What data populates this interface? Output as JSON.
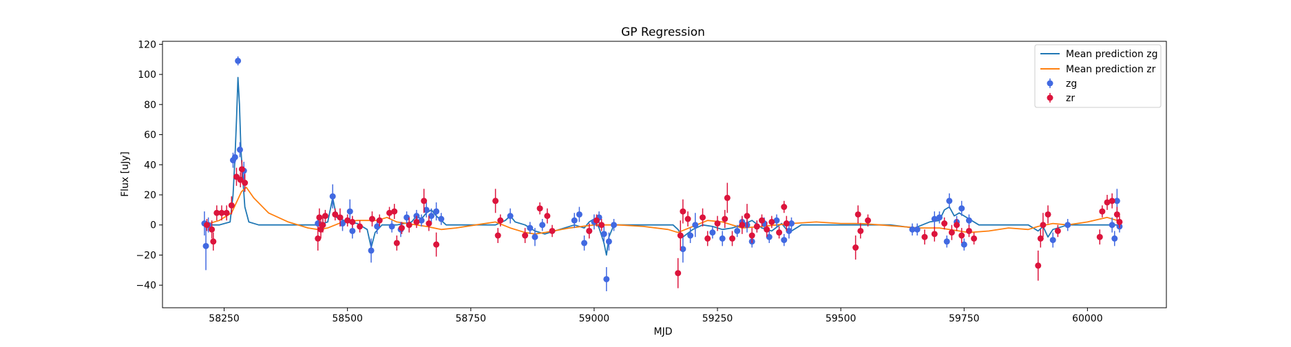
{
  "chart_data": {
    "type": "scatter",
    "title": "GP Regression",
    "xlabel": "MJD",
    "ylabel": "Flux [uJy]",
    "xlim": [
      58125,
      60160
    ],
    "ylim": [
      -55,
      122
    ],
    "xticks": [
      58250,
      58500,
      58750,
      59000,
      59250,
      59500,
      59750,
      60000
    ],
    "yticks": [
      -40,
      -20,
      0,
      20,
      40,
      60,
      80,
      100,
      120
    ],
    "grid": false,
    "legend_position": "top-right",
    "series": [
      {
        "name": "Mean prediction zg",
        "kind": "line",
        "color": "#1f77b4",
        "x": [
          58210,
          58240,
          58262,
          58268,
          58272,
          58275,
          58278,
          58281,
          58284,
          58288,
          58292,
          58300,
          58320,
          58440,
          58460,
          58470,
          58478,
          58500,
          58520,
          58540,
          58548,
          58556,
          58570,
          58600,
          58630,
          58640,
          58650,
          58660,
          58670,
          58680,
          58700,
          58800,
          58820,
          58830,
          58840,
          58860,
          58880,
          58900,
          58960,
          58980,
          58990,
          59000,
          59010,
          59020,
          59025,
          59030,
          59040,
          59080,
          59160,
          59170,
          59180,
          59200,
          59220,
          59240,
          59260,
          59280,
          59300,
          59320,
          59340,
          59360,
          59380,
          59395,
          59420,
          59600,
          59650,
          59680,
          59700,
          59710,
          59720,
          59730,
          59740,
          59760,
          59780,
          59880,
          59900,
          59910,
          59920,
          59930,
          59960,
          60060
        ],
        "y": [
          0,
          0,
          2,
          20,
          45,
          70,
          98,
          80,
          50,
          30,
          12,
          2,
          0,
          0,
          2,
          18,
          5,
          2,
          1,
          -3,
          -15,
          -5,
          0,
          0,
          2,
          6,
          4,
          8,
          10,
          6,
          0,
          0,
          3,
          6,
          2,
          0,
          -4,
          -6,
          0,
          -2,
          2,
          4,
          -2,
          -12,
          -20,
          -8,
          0,
          0,
          0,
          -3,
          -8,
          -3,
          0,
          -1,
          -3,
          -2,
          0,
          3,
          -2,
          -4,
          1,
          -5,
          0,
          0,
          -2,
          2,
          3,
          10,
          12,
          6,
          8,
          4,
          0,
          0,
          -4,
          -1,
          -8,
          -3,
          0,
          0
        ]
      },
      {
        "name": "Mean prediction zr",
        "kind": "line",
        "color": "#ff7f0e",
        "x": [
          58210,
          58240,
          58265,
          58285,
          58295,
          58310,
          58340,
          58380,
          58420,
          58440,
          58460,
          58490,
          58520,
          58560,
          58580,
          58600,
          58640,
          58660,
          58690,
          58720,
          58760,
          58800,
          58830,
          58860,
          58880,
          58900,
          58950,
          59000,
          59050,
          59100,
          59150,
          59170,
          59200,
          59230,
          59260,
          59300,
          59340,
          59370,
          59400,
          59450,
          59500,
          59540,
          59580,
          59620,
          59660,
          59700,
          59740,
          59760,
          59800,
          59840,
          59880,
          59900,
          59930,
          59960,
          60000,
          60040,
          60060
        ],
        "y": [
          0,
          3,
          8,
          22,
          25,
          18,
          8,
          2,
          -2,
          -3,
          -2,
          2,
          3,
          3,
          5,
          2,
          0,
          -1,
          -3,
          -2,
          0,
          2,
          -2,
          -5,
          -6,
          -5,
          -2,
          0,
          0,
          -1,
          -3,
          -5,
          -1,
          3,
          2,
          -2,
          -1,
          0,
          1,
          2,
          1,
          1,
          0,
          -1,
          -2,
          -2,
          -4,
          -5,
          -4,
          -2,
          -3,
          -1,
          1,
          0,
          2,
          5,
          3
        ]
      },
      {
        "name": "zg",
        "kind": "errorbar",
        "color": "#4169e1",
        "points": [
          [
            58210,
            1,
            8
          ],
          [
            58213,
            -14,
            16
          ],
          [
            58218,
            0,
            5
          ],
          [
            58268,
            43,
            5
          ],
          [
            58272,
            45,
            4
          ],
          [
            58278,
            109,
            3
          ],
          [
            58282,
            50,
            5
          ],
          [
            58290,
            36,
            6
          ],
          [
            58440,
            1,
            4
          ],
          [
            58450,
            0,
            4
          ],
          [
            58470,
            19,
            8
          ],
          [
            58490,
            1,
            5
          ],
          [
            58505,
            9,
            8
          ],
          [
            58510,
            -4,
            5
          ],
          [
            58548,
            -17,
            8
          ],
          [
            58560,
            -1,
            5
          ],
          [
            58590,
            -1,
            4
          ],
          [
            58608,
            -3,
            5
          ],
          [
            58620,
            5,
            4
          ],
          [
            58640,
            6,
            4
          ],
          [
            58650,
            3,
            4
          ],
          [
            58660,
            10,
            5
          ],
          [
            58670,
            6,
            5
          ],
          [
            58680,
            9,
            6
          ],
          [
            58690,
            4,
            4
          ],
          [
            58830,
            6,
            5
          ],
          [
            58870,
            -2,
            4
          ],
          [
            58880,
            -8,
            6
          ],
          [
            58895,
            0,
            4
          ],
          [
            58960,
            3,
            5
          ],
          [
            58970,
            7,
            5
          ],
          [
            58980,
            -12,
            5
          ],
          [
            58990,
            -4,
            4
          ],
          [
            59000,
            2,
            5
          ],
          [
            59010,
            5,
            4
          ],
          [
            59020,
            -6,
            5
          ],
          [
            59025,
            -36,
            8
          ],
          [
            59030,
            -11,
            6
          ],
          [
            59040,
            0,
            4
          ],
          [
            59180,
            -16,
            9
          ],
          [
            59195,
            -7,
            5
          ],
          [
            59205,
            0,
            8
          ],
          [
            59240,
            -5,
            4
          ],
          [
            59260,
            -9,
            5
          ],
          [
            59290,
            -4,
            4
          ],
          [
            59300,
            2,
            4
          ],
          [
            59310,
            0,
            5
          ],
          [
            59320,
            -11,
            4
          ],
          [
            59330,
            -1,
            4
          ],
          [
            59345,
            1,
            4
          ],
          [
            59355,
            -8,
            4
          ],
          [
            59370,
            3,
            4
          ],
          [
            59385,
            -10,
            4
          ],
          [
            59395,
            -4,
            5
          ],
          [
            59400,
            1,
            4
          ],
          [
            59645,
            -3,
            4
          ],
          [
            59655,
            -3,
            4
          ],
          [
            59690,
            4,
            5
          ],
          [
            59700,
            5,
            4
          ],
          [
            59715,
            -11,
            4
          ],
          [
            59720,
            16,
            5
          ],
          [
            59735,
            2,
            4
          ],
          [
            59745,
            11,
            5
          ],
          [
            59750,
            -13,
            4
          ],
          [
            59760,
            3,
            4
          ],
          [
            59930,
            -10,
            5
          ],
          [
            59960,
            0,
            4
          ],
          [
            60050,
            0,
            5
          ],
          [
            60055,
            -9,
            5
          ],
          [
            60060,
            16,
            8
          ],
          [
            60065,
            -1,
            4
          ]
        ]
      },
      {
        "name": "zr",
        "kind": "errorbar",
        "color": "#dc143c",
        "points": [
          [
            58215,
            0,
            4
          ],
          [
            58225,
            -3,
            6
          ],
          [
            58228,
            -11,
            6
          ],
          [
            58235,
            8,
            5
          ],
          [
            58245,
            8,
            5
          ],
          [
            58255,
            8,
            5
          ],
          [
            58265,
            13,
            6
          ],
          [
            58275,
            32,
            6
          ],
          [
            58283,
            30,
            5
          ],
          [
            58286,
            37,
            6
          ],
          [
            58292,
            28,
            6
          ],
          [
            58440,
            -9,
            8
          ],
          [
            58443,
            5,
            6
          ],
          [
            58446,
            -3,
            6
          ],
          [
            58450,
            0,
            5
          ],
          [
            58455,
            6,
            4
          ],
          [
            58475,
            7,
            4
          ],
          [
            58485,
            5,
            6
          ],
          [
            58500,
            3,
            4
          ],
          [
            58510,
            2,
            4
          ],
          [
            58525,
            -1,
            4
          ],
          [
            58550,
            4,
            5
          ],
          [
            58565,
            3,
            4
          ],
          [
            58585,
            8,
            4
          ],
          [
            58595,
            9,
            5
          ],
          [
            58600,
            -12,
            5
          ],
          [
            58610,
            -2,
            4
          ],
          [
            58625,
            0,
            5
          ],
          [
            58640,
            2,
            4
          ],
          [
            58655,
            16,
            8
          ],
          [
            58665,
            1,
            5
          ],
          [
            58680,
            -13,
            8
          ],
          [
            58800,
            16,
            8
          ],
          [
            58805,
            -7,
            5
          ],
          [
            58810,
            3,
            4
          ],
          [
            58860,
            -7,
            5
          ],
          [
            58890,
            11,
            4
          ],
          [
            58905,
            6,
            5
          ],
          [
            58915,
            -4,
            4
          ],
          [
            58990,
            -4,
            5
          ],
          [
            59005,
            3,
            4
          ],
          [
            59015,
            0,
            4
          ],
          [
            59170,
            -32,
            10
          ],
          [
            59175,
            -7,
            10
          ],
          [
            59180,
            9,
            8
          ],
          [
            59190,
            4,
            5
          ],
          [
            59220,
            5,
            6
          ],
          [
            59230,
            -9,
            5
          ],
          [
            59250,
            1,
            5
          ],
          [
            59265,
            4,
            6
          ],
          [
            59270,
            18,
            10
          ],
          [
            59280,
            -9,
            5
          ],
          [
            59300,
            0,
            6
          ],
          [
            59310,
            6,
            8
          ],
          [
            59320,
            -7,
            5
          ],
          [
            59330,
            -1,
            4
          ],
          [
            59340,
            3,
            4
          ],
          [
            59350,
            -3,
            5
          ],
          [
            59360,
            2,
            4
          ],
          [
            59375,
            -5,
            4
          ],
          [
            59385,
            12,
            4
          ],
          [
            59390,
            1,
            5
          ],
          [
            59530,
            -15,
            8
          ],
          [
            59535,
            7,
            6
          ],
          [
            59540,
            -4,
            5
          ],
          [
            59555,
            3,
            4
          ],
          [
            59670,
            -8,
            5
          ],
          [
            59690,
            -6,
            5
          ],
          [
            59710,
            1,
            4
          ],
          [
            59725,
            -5,
            5
          ],
          [
            59735,
            0,
            4
          ],
          [
            59745,
            -7,
            5
          ],
          [
            59760,
            -4,
            4
          ],
          [
            59770,
            -9,
            4
          ],
          [
            59900,
            -27,
            10
          ],
          [
            59905,
            -9,
            6
          ],
          [
            59910,
            0,
            8
          ],
          [
            59920,
            7,
            6
          ],
          [
            59940,
            -4,
            4
          ],
          [
            60025,
            -8,
            5
          ],
          [
            60030,
            9,
            4
          ],
          [
            60040,
            15,
            5
          ],
          [
            60050,
            16,
            5
          ],
          [
            60060,
            7,
            5
          ],
          [
            60065,
            2,
            4
          ]
        ]
      }
    ]
  }
}
